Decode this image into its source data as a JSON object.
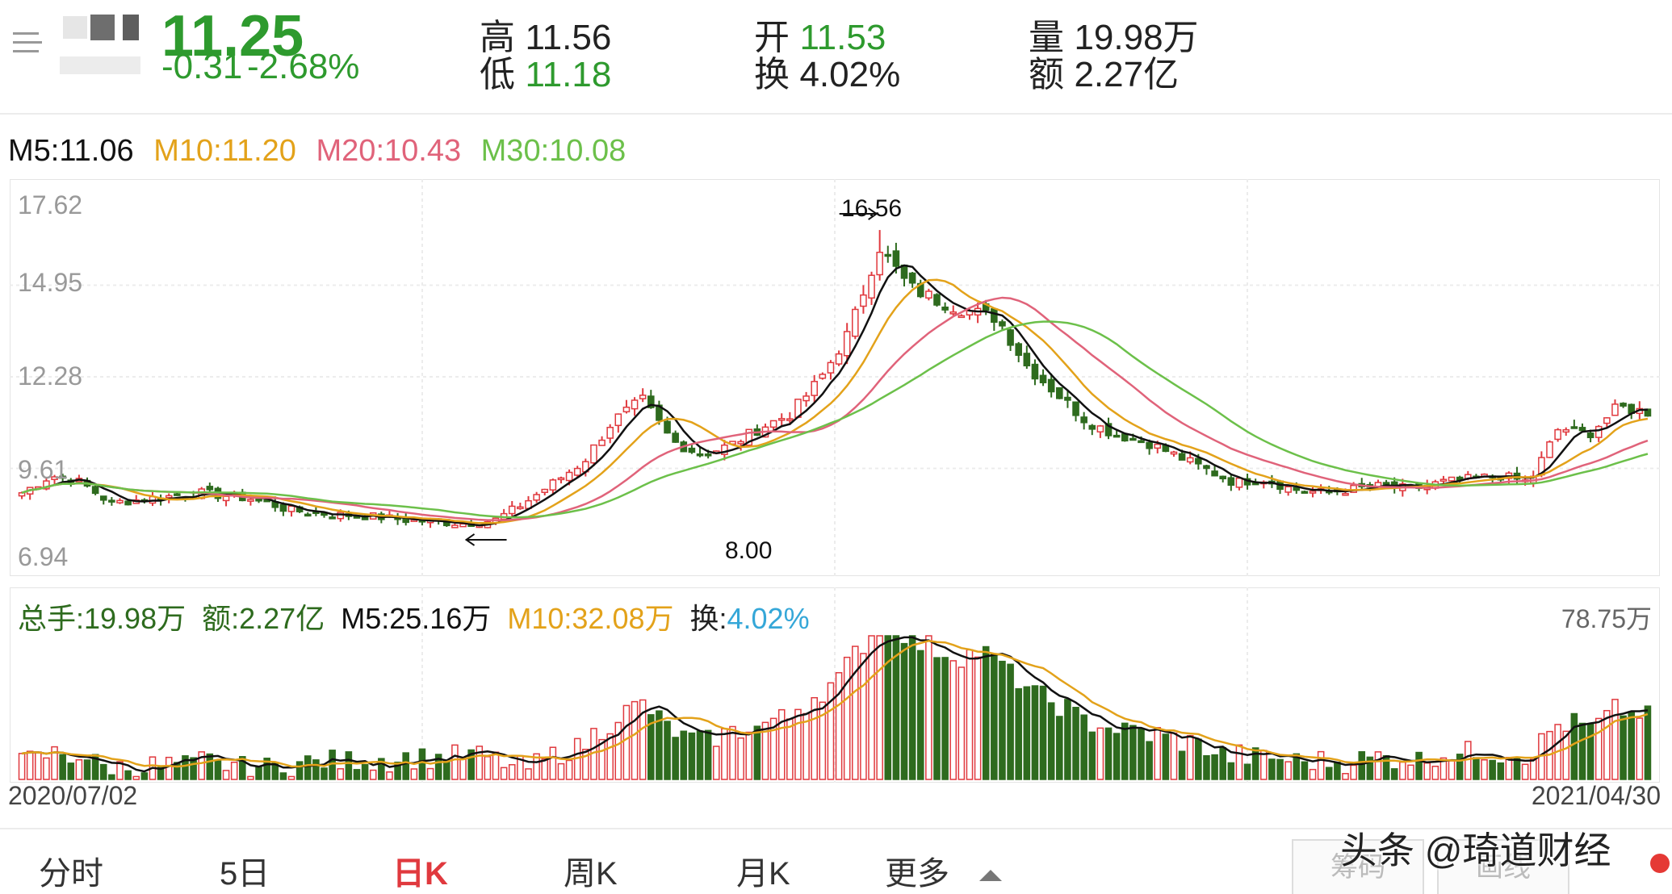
{
  "header": {
    "price": "11.25",
    "change": "-0.31",
    "change_pct": "-2.68%",
    "stats": [
      {
        "label": "高",
        "value": "11.56",
        "color": "#222"
      },
      {
        "label": "开",
        "value": "11.53",
        "color": "#2e9a2e"
      },
      {
        "label": "量",
        "value": "19.98万",
        "color": "#222"
      },
      {
        "label": "低",
        "value": "11.18",
        "color": "#2e9a2e"
      },
      {
        "label": "换",
        "value": "4.02%",
        "color": "#222"
      },
      {
        "label": "额",
        "value": "2.27亿",
        "color": "#222"
      }
    ]
  },
  "ma_legend": {
    "m5": "M5:11.06",
    "m10": "M10:11.20",
    "m20": "M20:10.43",
    "m30": "M30:10.08"
  },
  "price_chart": {
    "y_ticks": [
      "17.62",
      "14.95",
      "12.28",
      "9.61",
      "6.94"
    ],
    "y_values": [
      17.62,
      14.95,
      12.28,
      9.61,
      6.94
    ],
    "annotation_high": "16.56",
    "annotation_low": "8.00",
    "high_value": 16.56,
    "low_value": 8.0
  },
  "volume_legend": {
    "total_label": "总手:",
    "total_value": "19.98万",
    "amount_label": "额:",
    "amount_value": "2.27亿",
    "m5": "M5:25.16万",
    "m10": "M10:32.08万",
    "turnover_label": "换:",
    "turnover_value": "4.02%",
    "max_label": "78.75万"
  },
  "dates": {
    "start": "2020/07/02",
    "end": "2021/04/30"
  },
  "tabs": [
    "分时",
    "5日",
    "日K",
    "周K",
    "月K",
    "更多"
  ],
  "active_tab": "日K",
  "bottom_buttons": {
    "chips": "筹码",
    "draw": "画线"
  },
  "watermark": "头条 @琦道财经",
  "colors": {
    "up": "#e0393e",
    "down": "#2e6b1e",
    "m5": "#111111",
    "m10": "#e3a21a",
    "m20": "#e0637a",
    "m30": "#6cc04a",
    "accent_green": "#2e9a2e"
  },
  "chart_data": {
    "type": "candlestick",
    "x_range": [
      "2020/07/02",
      "2021/04/30"
    ],
    "ylim": [
      6.94,
      17.62
    ],
    "close_estimates": [
      8.9,
      9.4,
      9.2,
      8.6,
      8.7,
      8.8,
      8.9,
      8.8,
      8.7,
      8.4,
      8.3,
      8.25,
      8.2,
      8.1,
      8.05,
      8.0,
      8.1,
      8.6,
      9.2,
      9.8,
      11.0,
      11.6,
      10.4,
      10.0,
      10.3,
      10.8,
      11.2,
      12.2,
      13.6,
      16.1,
      14.9,
      14.5,
      14.2,
      14.0,
      12.6,
      11.8,
      11.0,
      10.6,
      10.4,
      10.0,
      9.6,
      9.2,
      9.3,
      9.0,
      8.9,
      9.0,
      9.1,
      9.0,
      9.2,
      9.3,
      9.4,
      9.2,
      10.8,
      10.6,
      11.4,
      11.25
    ],
    "volume_max": "78.75万"
  }
}
